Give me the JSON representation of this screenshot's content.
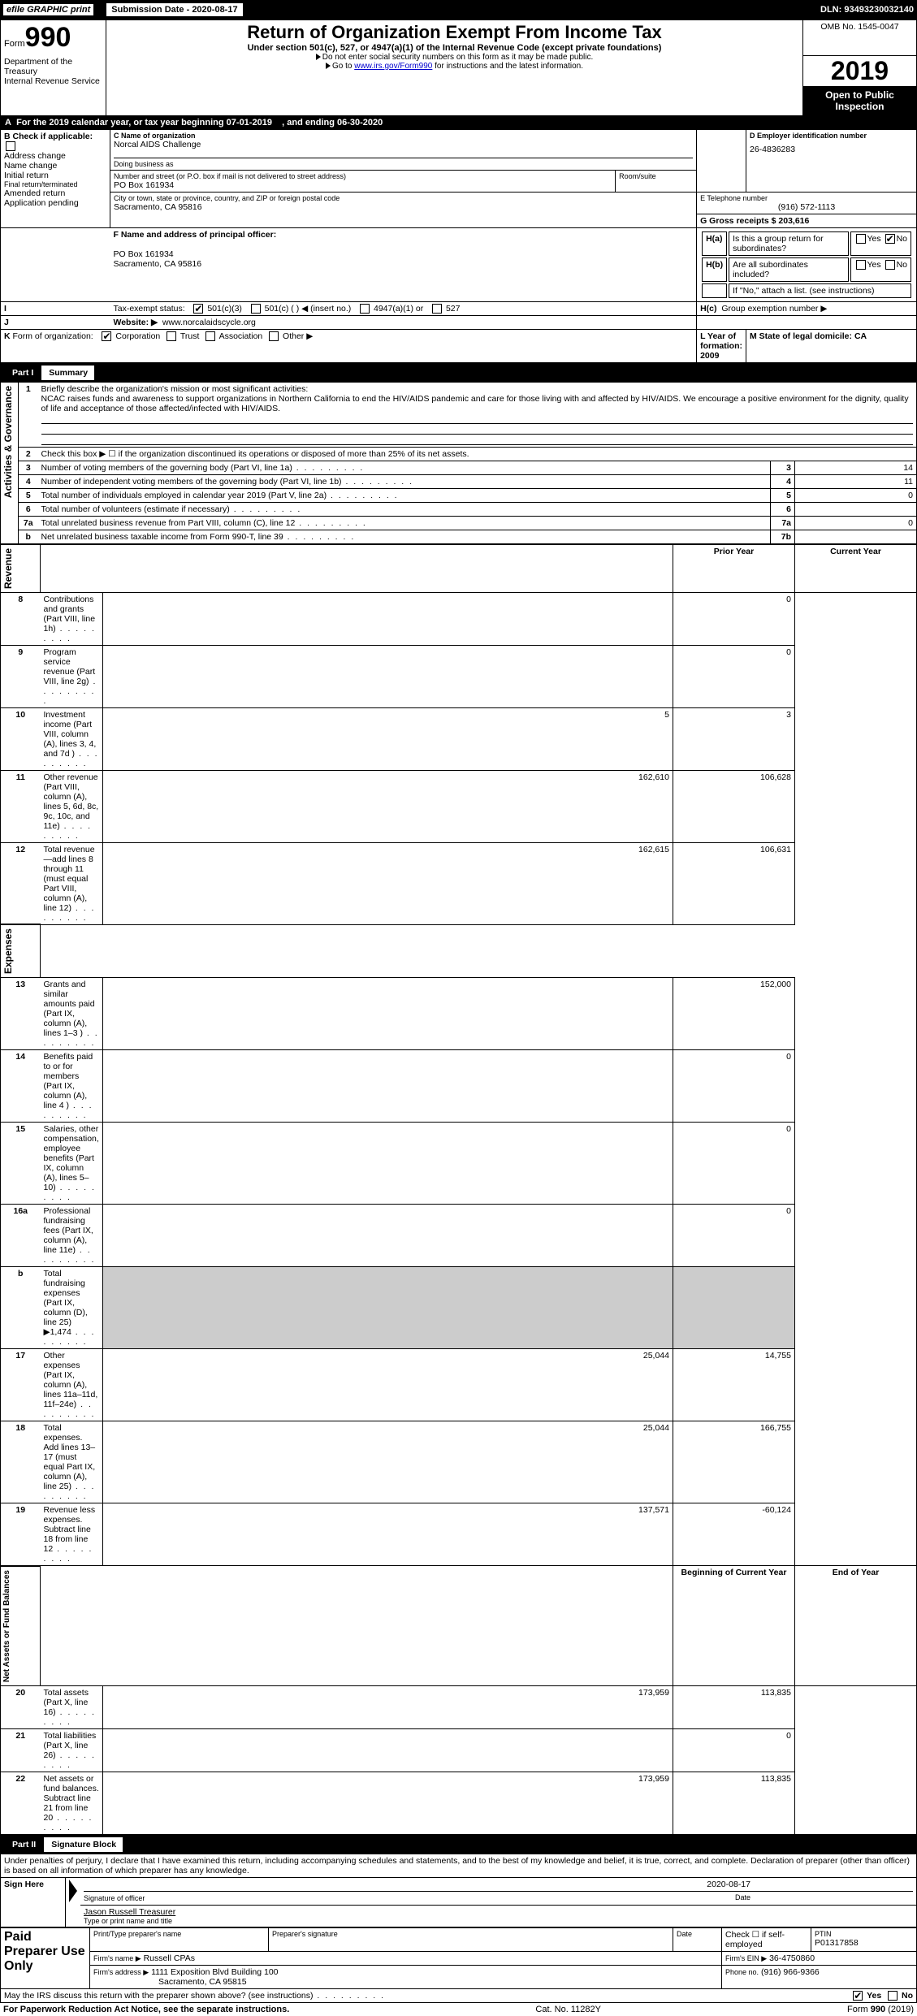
{
  "topbar": {
    "efile": "efile GRAPHIC print",
    "sub_label": "Submission Date - 2020-08-17",
    "dln": "DLN: 93493230032140"
  },
  "header": {
    "form_prefix": "Form",
    "form_num": "990",
    "dept": "Department of the Treasury",
    "irs": "Internal Revenue Service",
    "title": "Return of Organization Exempt From Income Tax",
    "subtitle": "Under section 501(c), 527, or 4947(a)(1) of the Internal Revenue Code (except private foundations)",
    "note1": "Do not enter social security numbers on this form as it may be made public.",
    "note2_pre": "Go to ",
    "note2_link": "www.irs.gov/Form990",
    "note2_post": " for instructions and the latest information.",
    "omb": "OMB No. 1545-0047",
    "year": "2019",
    "open": "Open to Public Inspection"
  },
  "A": {
    "text": "For the 2019 calendar year, or tax year beginning 07-01-2019",
    "ending": ", and ending 06-30-2020"
  },
  "B": {
    "label": "Check if applicable:",
    "opts": [
      "Address change",
      "Name change",
      "Initial return",
      "Final return/terminated",
      "Amended return",
      "Application pending"
    ]
  },
  "C": {
    "name_label": "C Name of organization",
    "name": "Norcal AIDS Challenge",
    "dba_label": "Doing business as",
    "addr_label": "Number and street (or P.O. box if mail is not delivered to street address)",
    "addr": "PO Box 161934",
    "room": "Room/suite",
    "city_label": "City or town, state or province, country, and ZIP or foreign postal code",
    "city": "Sacramento, CA  95816"
  },
  "D": {
    "label": "D Employer identification number",
    "val": "26-4836283"
  },
  "E": {
    "label": "E Telephone number",
    "val": "(916) 572-1113"
  },
  "G": {
    "label": "G Gross receipts $ 203,616"
  },
  "F": {
    "label": "F  Name and address of principal officer:",
    "addr1": "PO Box 161934",
    "addr2": "Sacramento, CA  95816"
  },
  "H": {
    "a": "Is this a group return for",
    "a2": "subordinates?",
    "b": "Are all subordinates included?",
    "bnote": "If \"No,\" attach a list. (see instructions)",
    "c": "Group exemption number ▶"
  },
  "I": {
    "label": "Tax-exempt status:",
    "o1": "501(c)(3)",
    "o2": "501(c) (  ) ◀ (insert no.)",
    "o3": "4947(a)(1) or",
    "o4": "527"
  },
  "J": {
    "label": "Website: ▶",
    "val": "www.norcalaidscycle.org"
  },
  "K": {
    "label": "Form of organization:",
    "o1": "Corporation",
    "o2": "Trust",
    "o3": "Association",
    "o4": "Other ▶"
  },
  "L": {
    "label": "L Year of formation: 2009"
  },
  "M": {
    "label": "M State of legal domicile: CA"
  },
  "part1": {
    "label": "Part I",
    "title": "Summary"
  },
  "summary": {
    "l1": "Briefly describe the organization's mission or most significant activities:",
    "l1text": "NCAC raises funds and awareness to support organizations in Northern California to end the HIV/AIDS pandemic and care for those living with and affected by HIV/AIDS. We encourage a positive environment for the dignity, quality of life and acceptance of those affected/infected with HIV/AIDS.",
    "l2": "Check this box ▶ ☐  if the organization discontinued its operations or disposed of more than 25% of its net assets.",
    "rows": [
      {
        "n": "3",
        "t": "Number of voting members of the governing body (Part VI, line 1a)",
        "box": "3",
        "v": "14"
      },
      {
        "n": "4",
        "t": "Number of independent voting members of the governing body (Part VI, line 1b)",
        "box": "4",
        "v": "11"
      },
      {
        "n": "5",
        "t": "Total number of individuals employed in calendar year 2019 (Part V, line 2a)",
        "box": "5",
        "v": "0"
      },
      {
        "n": "6",
        "t": "Total number of volunteers (estimate if necessary)",
        "box": "6",
        "v": ""
      },
      {
        "n": "7a",
        "t": "Total unrelated business revenue from Part VIII, column (C), line 12",
        "box": "7a",
        "v": "0"
      },
      {
        "n": "b",
        "t": "Net unrelated business taxable income from Form 990-T, line 39",
        "box": "7b",
        "v": ""
      }
    ]
  },
  "cols": {
    "prior": "Prior Year",
    "current": "Current Year",
    "boy": "Beginning of Current Year",
    "eoy": "End of Year"
  },
  "revenue": [
    {
      "n": "8",
      "t": "Contributions and grants (Part VIII, line 1h)",
      "p": "",
      "c": "0"
    },
    {
      "n": "9",
      "t": "Program service revenue (Part VIII, line 2g)",
      "p": "",
      "c": "0"
    },
    {
      "n": "10",
      "t": "Investment income (Part VIII, column (A), lines 3, 4, and 7d )",
      "p": "5",
      "c": "3"
    },
    {
      "n": "11",
      "t": "Other revenue (Part VIII, column (A), lines 5, 6d, 8c, 9c, 10c, and 11e)",
      "p": "162,610",
      "c": "106,628"
    },
    {
      "n": "12",
      "t": "Total revenue—add lines 8 through 11 (must equal Part VIII, column (A), line 12)",
      "p": "162,615",
      "c": "106,631"
    }
  ],
  "expenses": [
    {
      "n": "13",
      "t": "Grants and similar amounts paid (Part IX, column (A), lines 1–3 )",
      "p": "",
      "c": "152,000"
    },
    {
      "n": "14",
      "t": "Benefits paid to or for members (Part IX, column (A), line 4 )",
      "p": "",
      "c": "0"
    },
    {
      "n": "15",
      "t": "Salaries, other compensation, employee benefits (Part IX, column (A), lines 5–10)",
      "p": "",
      "c": "0"
    },
    {
      "n": "16a",
      "t": "Professional fundraising fees (Part IX, column (A), line 11e)",
      "p": "",
      "c": "0"
    },
    {
      "n": "b",
      "t": "Total fundraising expenses (Part IX, column (D), line 25) ▶1,474",
      "p": "SHADE",
      "c": "SHADE"
    },
    {
      "n": "17",
      "t": "Other expenses (Part IX, column (A), lines 11a–11d, 11f–24e)",
      "p": "25,044",
      "c": "14,755"
    },
    {
      "n": "18",
      "t": "Total expenses. Add lines 13–17 (must equal Part IX, column (A), line 25)",
      "p": "25,044",
      "c": "166,755"
    },
    {
      "n": "19",
      "t": "Revenue less expenses. Subtract line 18 from line 12",
      "p": "137,571",
      "c": "-60,124"
    }
  ],
  "netassets": [
    {
      "n": "20",
      "t": "Total assets (Part X, line 16)",
      "p": "173,959",
      "c": "113,835"
    },
    {
      "n": "21",
      "t": "Total liabilities (Part X, line 26)",
      "p": "",
      "c": "0"
    },
    {
      "n": "22",
      "t": "Net assets or fund balances. Subtract line 21 from line 20",
      "p": "173,959",
      "c": "113,835"
    }
  ],
  "vlabels": {
    "ag": "Activities & Governance",
    "rev": "Revenue",
    "exp": "Expenses",
    "na": "Net Assets or\nFund Balances"
  },
  "part2": {
    "label": "Part II",
    "title": "Signature Block"
  },
  "penalties": "Under penalties of perjury, I declare that I have examined this return, including accompanying schedules and statements, and to the best of my knowledge and belief, it is true, correct, and complete. Declaration of preparer (other than officer) is based on all information of which preparer has any knowledge.",
  "sign": {
    "here": "Sign Here",
    "date": "2020-08-17",
    "sig": "Signature of officer",
    "datel": "Date",
    "name": "Jason Russell  Treasurer",
    "namel": "Type or print name and title"
  },
  "paid": {
    "title": "Paid Preparer Use Only",
    "h1": "Print/Type preparer's name",
    "h2": "Preparer's signature",
    "h3": "Date",
    "chk": "Check ☐ if self-employed",
    "ptin_l": "PTIN",
    "ptin": "P01317858",
    "firm_l": "Firm's name  ▶",
    "firm": "Russell CPAs",
    "ein_l": "Firm's EIN ▶",
    "ein": "36-4750860",
    "addr_l": "Firm's address ▶",
    "addr": "1111 Exposition Blvd Building 100",
    "city": "Sacramento, CA  95815",
    "phone_l": "Phone no.",
    "phone": "(916) 966-9366"
  },
  "discuss": "May the IRS discuss this return with the preparer shown above? (see instructions)",
  "footer": {
    "left": "For Paperwork Reduction Act Notice, see the separate instructions.",
    "mid": "Cat. No. 11282Y",
    "right": "Form 990 (2019)"
  }
}
